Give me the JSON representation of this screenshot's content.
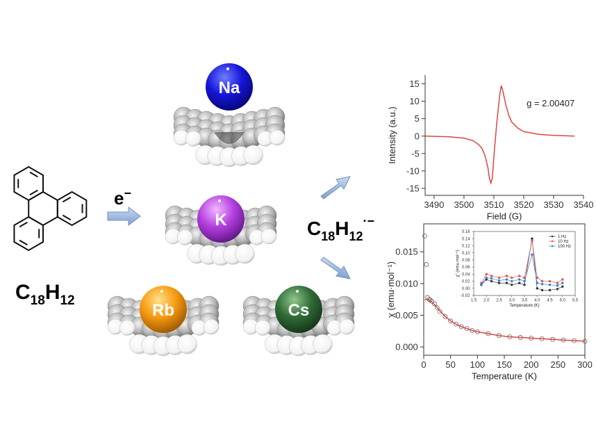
{
  "diagram": {
    "formula": [
      "C",
      "18",
      "H",
      "12"
    ],
    "electron": [
      "e",
      "−"
    ],
    "metals": [
      "Na",
      "K",
      "Rb",
      "Cs"
    ],
    "radical_anion": [
      "C",
      "18",
      "H",
      "12",
      "·−"
    ]
  },
  "chart_data": [
    {
      "type": "line",
      "xlabel": "Field (G)",
      "ylabel": "Intensity (a.u.)",
      "annotation": "g = 2.00407",
      "x": [
        3487,
        3495,
        3500,
        3503,
        3505,
        3506,
        3507,
        3508,
        3508.5,
        3509,
        3509.5,
        3510,
        3511,
        3512,
        3512.5,
        3513,
        3514,
        3515,
        3516,
        3518,
        3520,
        3525,
        3530,
        3537
      ],
      "series": [
        {
          "color": "#d9463f",
          "values": [
            0,
            -0.2,
            -0.6,
            -1.3,
            -2.5,
            -3.5,
            -5.5,
            -9,
            -12,
            -13.5,
            -12,
            -6,
            4,
            12,
            14.5,
            13,
            9,
            6,
            4,
            2.3,
            1.3,
            0.5,
            0.2,
            0
          ]
        }
      ],
      "xlim": [
        3487,
        3540
      ],
      "ylim": [
        -17,
        17.5
      ],
      "xticks": [
        3490,
        3500,
        3510,
        3520,
        3530,
        3540
      ],
      "yticks": [
        -15,
        -10,
        -5,
        0,
        5,
        10,
        15
      ]
    },
    {
      "type": "scatter",
      "xlabel": "Temperature (K)",
      "ylabel": "χ (emu·mol⁻¹)",
      "x": [
        2,
        5,
        7,
        10,
        12,
        15,
        20,
        25,
        30,
        40,
        50,
        60,
        70,
        80,
        90,
        100,
        120,
        140,
        160,
        180,
        200,
        220,
        240,
        260,
        280,
        300
      ],
      "series": [
        {
          "color": "#666666",
          "marker": "open-circle",
          "values": [
            0.0175,
            0.013,
            0.0078,
            0.0075,
            0.0074,
            0.0072,
            0.0068,
            0.0062,
            0.0056,
            0.0048,
            0.0041,
            0.0036,
            0.0032,
            0.0029,
            0.0026,
            0.0024,
            0.0021,
            0.0018,
            0.0016,
            0.0015,
            0.0014,
            0.0013,
            0.0012,
            0.0011,
            0.001,
            0.0009
          ]
        },
        {
          "color": "#d9463f",
          "mode": "line",
          "values": [
            0.0074,
            0.0075,
            0.0075,
            0.0074,
            0.0073,
            0.0071,
            0.0067,
            0.0062,
            0.0057,
            0.0048,
            0.0041,
            0.0036,
            0.0032,
            0.0029,
            0.0026,
            0.0024,
            0.0021,
            0.0018,
            0.0016,
            0.0015,
            0.0014,
            0.0013,
            0.0012,
            0.0011,
            0.001,
            0.0009
          ]
        }
      ],
      "xlim": [
        0,
        300
      ],
      "ylim": [
        -0.0013,
        0.0194
      ],
      "xticks": [
        0,
        50,
        100,
        150,
        200,
        250,
        300
      ],
      "yticks": [
        {
          "value": 0,
          "label": "0.000"
        },
        0.005,
        {
          "value": 0.01,
          "label": "0.010"
        },
        0.015
      ]
    },
    {
      "type": "line",
      "markers": true,
      "legend": "upper-right",
      "xlabel": "Temperature (K)",
      "ylabel": "χ'' (emu·mol⁻¹)",
      "x": [
        1.8,
        2.0,
        2.2,
        2.5,
        2.8,
        3.0,
        3.3,
        3.5,
        3.8,
        4.0,
        4.2,
        4.5,
        4.8,
        5.0
      ],
      "series": [
        {
          "name": "1 Hz",
          "color": "#333333",
          "values": [
            0.01,
            0.025,
            0.02,
            0.015,
            0.015,
            0.01,
            0.015,
            0.01,
            0.14,
            0.0,
            -0.005,
            -0.005,
            -0.002,
            0.005
          ]
        },
        {
          "name": "10 Hz",
          "color": "#e05050",
          "values": [
            0.015,
            0.04,
            0.035,
            0.03,
            0.035,
            0.03,
            0.035,
            0.03,
            0.135,
            0.03,
            0.02,
            0.02,
            0.015,
            0.025
          ]
        },
        {
          "name": "100 Hz",
          "color": "#3a7bd5",
          "values": [
            0.012,
            0.03,
            0.028,
            0.022,
            0.025,
            0.02,
            0.025,
            0.02,
            0.095,
            0.015,
            0.012,
            0.01,
            0.008,
            0.015
          ]
        }
      ],
      "xlim": [
        1.5,
        5.5
      ],
      "ylim": [
        -0.02,
        0.16
      ],
      "xticks": [
        1.5,
        {
          "value": 2,
          "label": "2.0"
        },
        2.5,
        {
          "value": 3,
          "label": "3.0"
        },
        3.5,
        {
          "value": 4,
          "label": "4.0"
        },
        4.5,
        {
          "value": 5,
          "label": "5.0"
        },
        5.5
      ],
      "yticks": [
        -0.02,
        {
          "value": 0,
          "label": "0.00"
        },
        0.02,
        0.04,
        0.06,
        0.08,
        {
          "value": 0.1,
          "label": "0.10"
        },
        0.12,
        0.14,
        0.16
      ]
    }
  ]
}
